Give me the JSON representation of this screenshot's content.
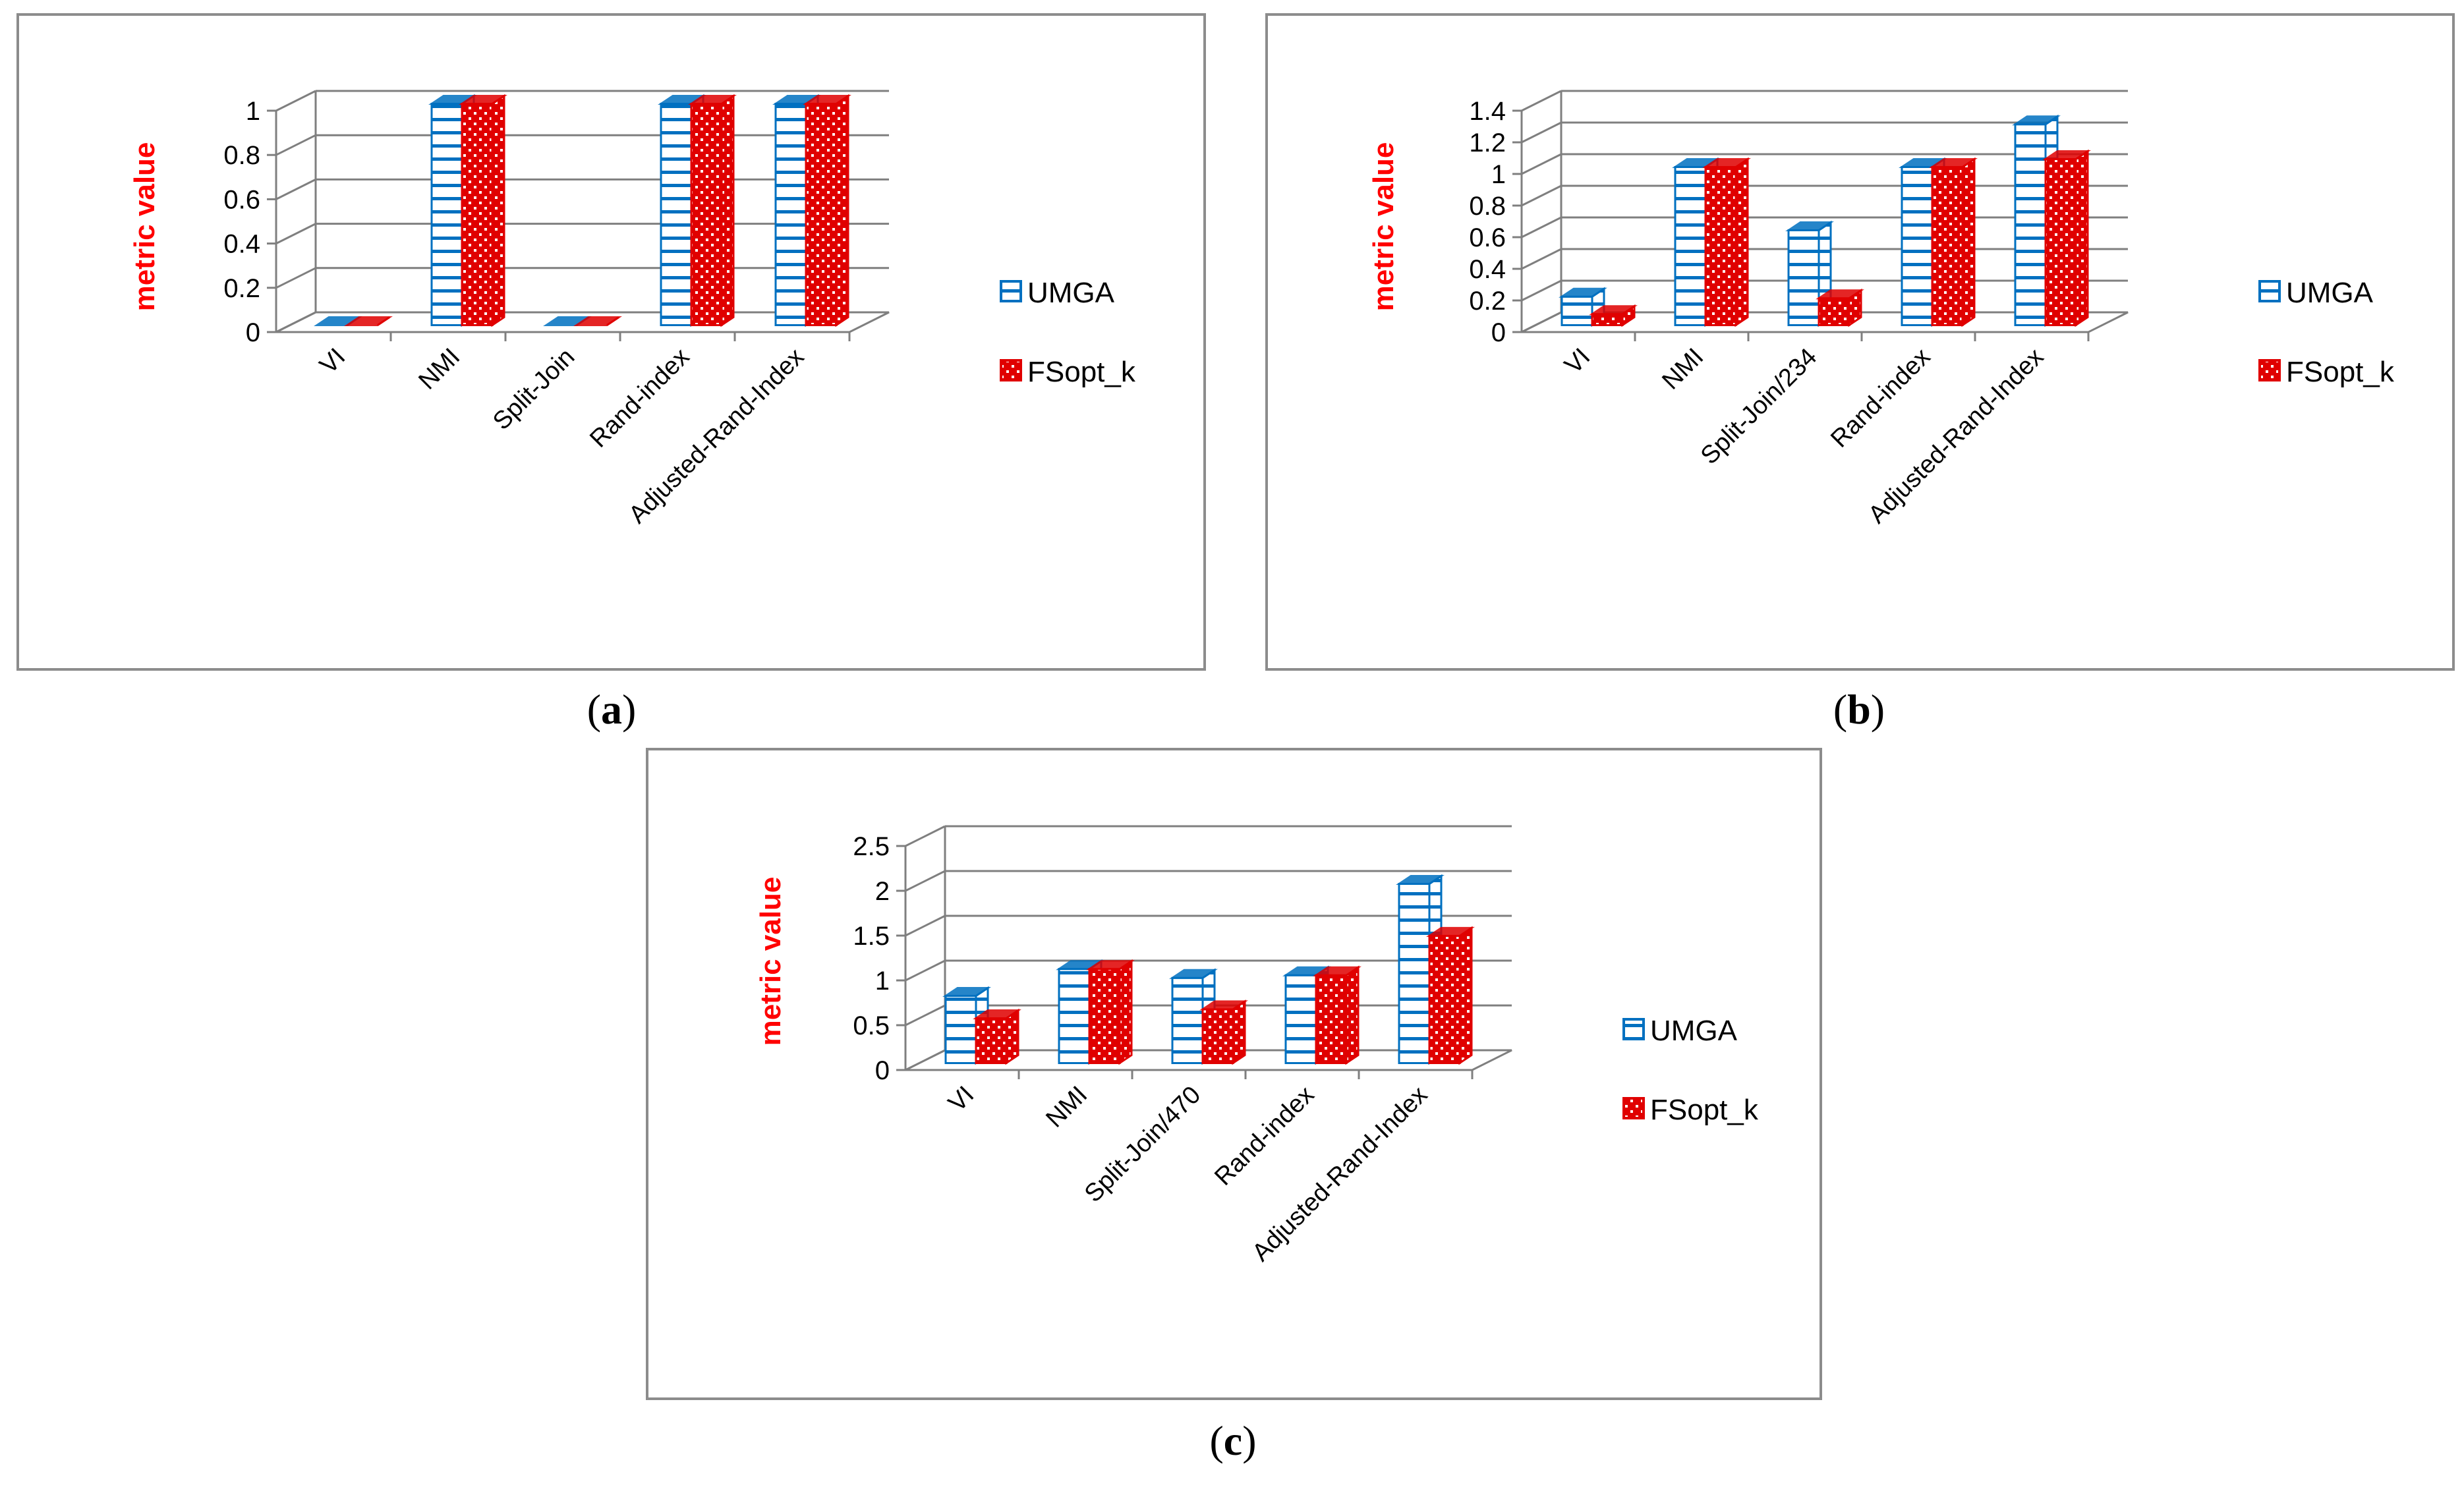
{
  "colors": {
    "umga": "#0070c0",
    "fsopt": "#e00000",
    "grid": "#7f7f7f",
    "ylabel": "#ff0000",
    "frame": "#8c8c8c"
  },
  "captions": [
    "a",
    "b",
    "c"
  ],
  "chart_data": [
    {
      "type": "bar",
      "panel": "a",
      "ylabel": "metric value",
      "categories": [
        "VI",
        "NMI",
        "Split-Join",
        "Rand-index",
        "Adjusted-Rand-Index"
      ],
      "yticks": [
        "0",
        "0.2",
        "0.4",
        "0.6",
        "0.8",
        "1"
      ],
      "ylim": [
        0,
        1
      ],
      "series": [
        {
          "name": "UMGA",
          "values": [
            0,
            1,
            0,
            1,
            1
          ]
        },
        {
          "name": "FSopt_k",
          "values": [
            0,
            1,
            0,
            1,
            1
          ]
        }
      ],
      "legend": "right",
      "grid": true
    },
    {
      "type": "bar",
      "panel": "b",
      "ylabel": "metric value",
      "categories": [
        "VI",
        "NMI",
        "Split-Join/234",
        "Rand-index",
        "Adjusted-Rand-Index"
      ],
      "yticks": [
        "0",
        "0.2",
        "0.4",
        "0.6",
        "0.8",
        "1",
        "1.2",
        "1.4"
      ],
      "ylim": [
        0,
        1.4
      ],
      "series": [
        {
          "name": "UMGA",
          "values": [
            0.18,
            1,
            0.6,
            1,
            1.27
          ]
        },
        {
          "name": "FSopt_k",
          "values": [
            0.07,
            1,
            0.17,
            1,
            1.05
          ]
        }
      ],
      "legend": "right",
      "grid": true
    },
    {
      "type": "bar",
      "panel": "c",
      "ylabel": "metric value",
      "categories": [
        "VI",
        "NMI",
        "Split-Join/470",
        "Rand-index",
        "Adjusted-Rand-Index"
      ],
      "yticks": [
        "0",
        "0.5",
        "1",
        "1.5",
        "2",
        "2.5"
      ],
      "ylim": [
        0,
        2.5
      ],
      "series": [
        {
          "name": "UMGA",
          "values": [
            0.75,
            1.05,
            0.95,
            0.98,
            2.0
          ]
        },
        {
          "name": "FSopt_k",
          "values": [
            0.5,
            1.05,
            0.6,
            0.98,
            1.42
          ]
        }
      ],
      "legend": "right",
      "grid": true
    }
  ]
}
